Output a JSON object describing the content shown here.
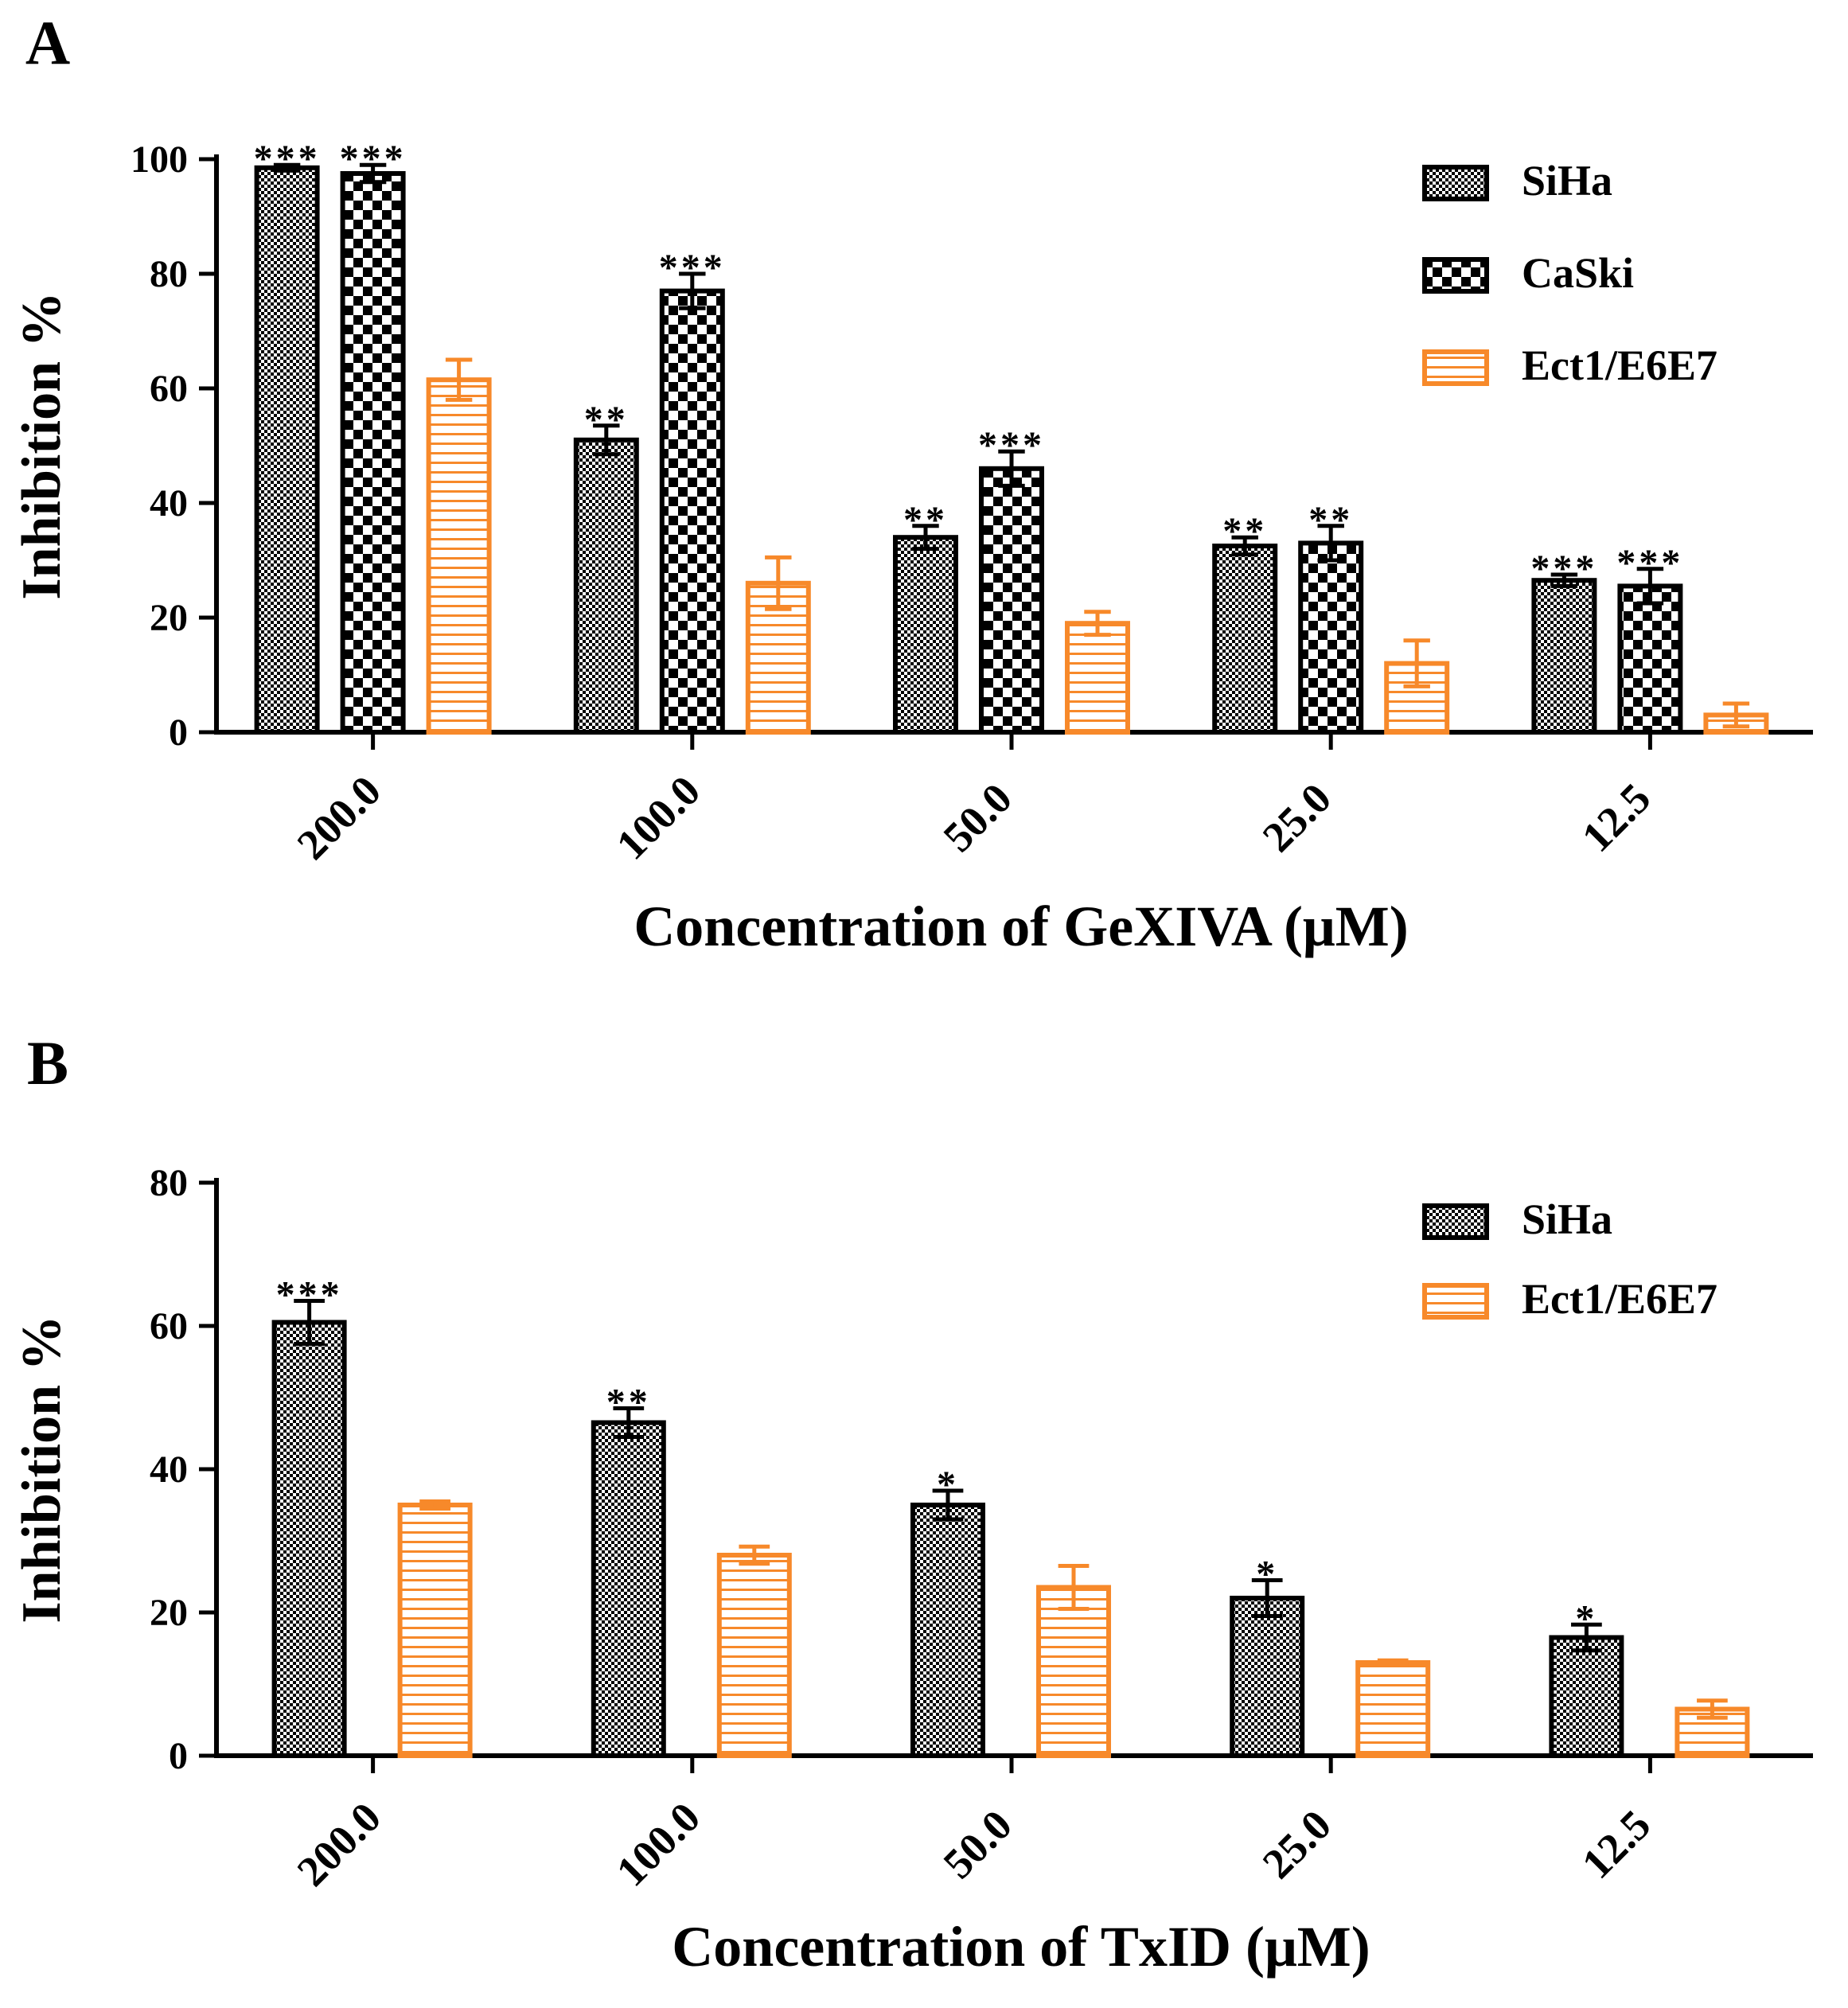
{
  "colors": {
    "black": "#000000",
    "orange": "#f7892a",
    "white": "#ffffff"
  },
  "chart_data": [
    {
      "panel_label": "A",
      "type": "bar",
      "xlabel": "Concentration of GeXIVA (μM)",
      "ylabel": "Inhibition %",
      "ylim": [
        0,
        100
      ],
      "yticks": [
        0,
        20,
        40,
        60,
        80,
        100
      ],
      "categories": [
        "200.0",
        "100.0",
        "50.0",
        "25.0",
        "12.5"
      ],
      "legend": "top-right",
      "series": [
        {
          "name": "SiHa",
          "pattern": "fine-check",
          "color": "#000000",
          "values": [
            98.5,
            51,
            34,
            32.5,
            26.5
          ],
          "errors": [
            0.5,
            2.5,
            2,
            1.5,
            1
          ],
          "significance": [
            "***",
            "**",
            "**",
            "**",
            "***"
          ]
        },
        {
          "name": "CaSki",
          "pattern": "coarse-check",
          "color": "#000000",
          "values": [
            97.5,
            77,
            46,
            33,
            25.5
          ],
          "errors": [
            1.5,
            3,
            3,
            3,
            3
          ],
          "significance": [
            "***",
            "***",
            "***",
            "**",
            "***"
          ]
        },
        {
          "name": "Ect1/E6E7",
          "pattern": "hlines",
          "color": "#f7892a",
          "values": [
            61.5,
            26,
            19,
            12,
            3
          ],
          "errors": [
            3.5,
            4.5,
            2,
            4,
            2
          ],
          "significance": [
            "",
            "",
            "",
            "",
            ""
          ]
        }
      ]
    },
    {
      "panel_label": "B",
      "type": "bar",
      "xlabel": "Concentration of TxID (μM)",
      "ylabel": "Inhibition %",
      "ylim": [
        0,
        80
      ],
      "yticks": [
        0,
        20,
        40,
        60,
        80
      ],
      "categories": [
        "200.0",
        "100.0",
        "50.0",
        "25.0",
        "12.5"
      ],
      "legend": "top-right",
      "series": [
        {
          "name": "SiHa",
          "pattern": "fine-check",
          "color": "#000000",
          "values": [
            60.5,
            46.5,
            35,
            22,
            16.5
          ],
          "errors": [
            3,
            2,
            2,
            2.5,
            1.8
          ],
          "significance": [
            "***",
            "**",
            "*",
            "*",
            "*"
          ]
        },
        {
          "name": "Ect1/E6E7",
          "pattern": "hlines",
          "color": "#f7892a",
          "values": [
            35,
            28,
            23.5,
            13,
            6.5
          ],
          "errors": [
            0.5,
            1.2,
            3,
            0.3,
            1.2
          ],
          "significance": [
            "",
            "",
            "",
            "",
            ""
          ]
        }
      ]
    }
  ]
}
